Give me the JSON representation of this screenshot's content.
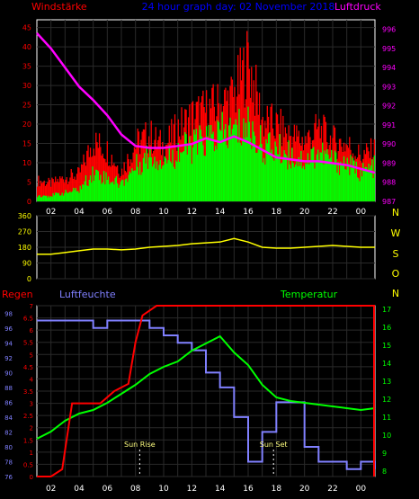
{
  "colors": {
    "background": "#000000",
    "plot_border": "#ffffff",
    "grid": "#2a2a2a",
    "wind_avg": "#00ff00",
    "wind_gust": "#ff0000",
    "pressure": "#ff00ff",
    "direction": "#ffff00",
    "direction_labels": "#ffff00",
    "rain": "#ff0000",
    "humidity": "#8080ff",
    "temperature": "#00ff00",
    "time_ticks": "#ffffff"
  },
  "header": {
    "left_title": "Windstärke",
    "center_title": "24 hour graph day: 02 November 2018",
    "right_title": "Luftdruck"
  },
  "lower_header": {
    "rain_title": "Regen",
    "humidity_title": "Luftfeuchte",
    "temperature_title": "Temperatur"
  },
  "x_tick_labels": [
    "02",
    "04",
    "06",
    "08",
    "10",
    "12",
    "14",
    "16",
    "18",
    "20",
    "22",
    "00"
  ],
  "chart_data": [
    {
      "type": "area",
      "panel": "wind_pressure",
      "x_range_hours": [
        0,
        24
      ],
      "left_axis": {
        "label": "Windstärke",
        "ticks": [
          0,
          5,
          10,
          15,
          20,
          25,
          30,
          35,
          40,
          45
        ],
        "ylim": [
          0,
          47
        ]
      },
      "right_axis": {
        "label": "Luftdruck",
        "ticks": [
          987,
          988,
          989,
          990,
          991,
          992,
          993,
          994,
          995,
          996
        ],
        "ylim": [
          987,
          996.5
        ]
      },
      "series": [
        {
          "name": "wind_gust",
          "x": [
            0,
            1,
            2,
            3,
            4,
            5,
            6,
            7,
            8,
            9,
            10,
            11,
            12,
            13,
            14,
            15,
            16,
            17,
            18,
            19,
            20,
            21,
            22,
            23,
            24
          ],
          "values": [
            7,
            6,
            8,
            9,
            20,
            17,
            10,
            19,
            22,
            18,
            24,
            28,
            30,
            32,
            35,
            47,
            27,
            25,
            22,
            20,
            24,
            20,
            19,
            15,
            17
          ]
        },
        {
          "name": "wind_avg",
          "x": [
            0,
            1,
            2,
            3,
            4,
            5,
            6,
            7,
            8,
            9,
            10,
            11,
            12,
            13,
            14,
            15,
            16,
            17,
            18,
            19,
            20,
            21,
            22,
            23,
            24
          ],
          "values": [
            2,
            2,
            3,
            4,
            10,
            8,
            6,
            12,
            16,
            14,
            17,
            19,
            21,
            23,
            24,
            26,
            19,
            18,
            16,
            14,
            17,
            14,
            13,
            10,
            12
          ]
        },
        {
          "name": "pressure",
          "x": [
            0,
            1,
            2,
            3,
            4,
            5,
            6,
            7,
            8,
            9,
            10,
            11,
            12,
            13,
            14,
            15,
            16,
            17,
            18,
            19,
            20,
            21,
            22,
            23,
            24
          ],
          "values": [
            995.8,
            995.0,
            994.0,
            993.0,
            992.3,
            991.5,
            990.5,
            989.9,
            989.8,
            989.8,
            989.9,
            990.0,
            990.3,
            990.1,
            990.4,
            990.1,
            989.7,
            989.3,
            989.2,
            989.1,
            989.1,
            989.0,
            988.9,
            988.7,
            988.5
          ]
        }
      ]
    },
    {
      "type": "line",
      "panel": "wind_direction",
      "x_range_hours": [
        0,
        24
      ],
      "left_axis": {
        "ticks": [
          0,
          90,
          180,
          270,
          360
        ],
        "ylim": [
          0,
          360
        ]
      },
      "right_labels": [
        "N",
        "W",
        "S",
        "O",
        "N"
      ],
      "series": [
        {
          "name": "wind_direction",
          "x": [
            0,
            1,
            2,
            3,
            4,
            5,
            6,
            7,
            8,
            9,
            10,
            11,
            12,
            13,
            14,
            15,
            16,
            17,
            18,
            19,
            20,
            21,
            22,
            23,
            24
          ],
          "values": [
            140,
            140,
            150,
            160,
            170,
            170,
            165,
            170,
            180,
            185,
            190,
            200,
            205,
            210,
            230,
            210,
            180,
            175,
            175,
            180,
            185,
            190,
            185,
            180,
            180
          ]
        }
      ]
    },
    {
      "type": "line",
      "panel": "rain_humidity_temperature",
      "x_range_hours": [
        0,
        24
      ],
      "rain_axis": {
        "label": "Regen",
        "ticks": [
          0,
          0.5,
          1,
          1.5,
          2,
          2.5,
          3,
          3.5,
          4,
          4.5,
          5,
          5.5,
          6,
          6.5,
          7
        ],
        "ylim": [
          0,
          7
        ]
      },
      "humidity_axis": {
        "label": "Luftfeuchte",
        "ticks": [
          76,
          78,
          80,
          82,
          84,
          86,
          88,
          90,
          92,
          94,
          96,
          98
        ],
        "ylim": [
          76,
          99
        ]
      },
      "temperature_axis": {
        "label": "Temperatur",
        "ticks": [
          8,
          9,
          10,
          11,
          12,
          13,
          14,
          15,
          16,
          17
        ],
        "ylim": [
          7.7,
          17.2
        ]
      },
      "annotations": [
        {
          "text": "Sun Rise",
          "x": 7.3
        },
        {
          "text": "Sun Set",
          "x": 16.8
        }
      ],
      "series": [
        {
          "name": "rain",
          "x": [
            0,
            1,
            1.8,
            2.5,
            3.5,
            4.5,
            5.5,
            6.5,
            7,
            7.5,
            8,
            8.5,
            9,
            24
          ],
          "values": [
            0,
            0,
            0.3,
            3.0,
            3.0,
            3.0,
            3.5,
            3.8,
            5.5,
            6.6,
            6.8,
            7.0,
            7.0,
            7.0
          ]
        },
        {
          "name": "humidity",
          "x": [
            0,
            1,
            2,
            3,
            4,
            5,
            6,
            7,
            8,
            9,
            10,
            11,
            12,
            13,
            14,
            15,
            16,
            17,
            18,
            19,
            20,
            21,
            22,
            23,
            24
          ],
          "values": [
            97,
            97,
            97,
            97,
            96,
            97,
            97,
            97,
            96,
            95,
            94,
            93,
            90,
            88,
            84,
            78,
            82,
            86,
            86,
            80,
            78,
            78,
            77,
            78,
            77
          ]
        },
        {
          "name": "temperature",
          "x": [
            0,
            1,
            2,
            3,
            4,
            5,
            6,
            7,
            8,
            9,
            10,
            11,
            12,
            13,
            14,
            15,
            16,
            17,
            18,
            19,
            20,
            21,
            22,
            23,
            24
          ],
          "values": [
            9.8,
            10.2,
            10.8,
            11.2,
            11.4,
            11.8,
            12.3,
            12.8,
            13.4,
            13.8,
            14.1,
            14.7,
            15.1,
            15.5,
            14.6,
            13.9,
            12.8,
            12.1,
            11.9,
            11.8,
            11.7,
            11.6,
            11.5,
            11.4,
            11.5
          ]
        }
      ]
    }
  ]
}
